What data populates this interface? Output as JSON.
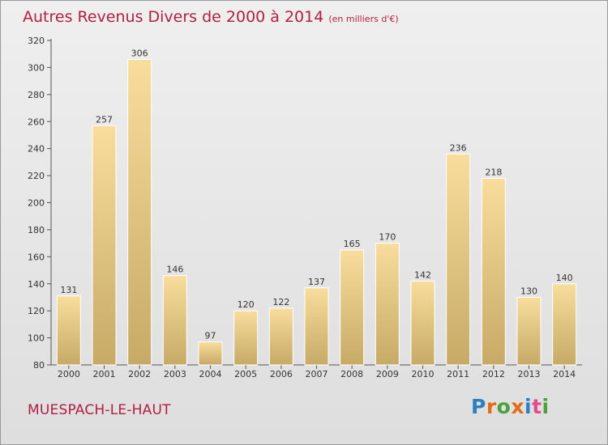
{
  "title": "Autres Revenus Divers de 2000 à 2014",
  "unit": "(en milliers d'€)",
  "place": "MUESPACH-LE-HAUT",
  "logo": {
    "text": "Proxiti",
    "colors": [
      "#2e7ec2",
      "#e36c1a",
      "#4aa33a",
      "#e36c1a",
      "#2e7ec2",
      "#e34b8c",
      "#4aa33a"
    ]
  },
  "colors": {
    "title": "#b01e45",
    "bar_light": "#f7dc9a",
    "bar_dark": "#c9ad69"
  },
  "chart_data": {
    "type": "bar",
    "categories": [
      "2000",
      "2001",
      "2002",
      "2003",
      "2004",
      "2005",
      "2006",
      "2007",
      "2008",
      "2009",
      "2010",
      "2011",
      "2012",
      "2013",
      "2014"
    ],
    "values": [
      131,
      257,
      306,
      146,
      97,
      120,
      122,
      137,
      165,
      170,
      142,
      236,
      218,
      130,
      140
    ],
    "ylim": [
      80,
      320
    ],
    "yticks": [
      80,
      100,
      120,
      140,
      160,
      180,
      200,
      220,
      240,
      260,
      280,
      300,
      320
    ],
    "grid": false,
    "xlabel": "",
    "ylabel": ""
  }
}
